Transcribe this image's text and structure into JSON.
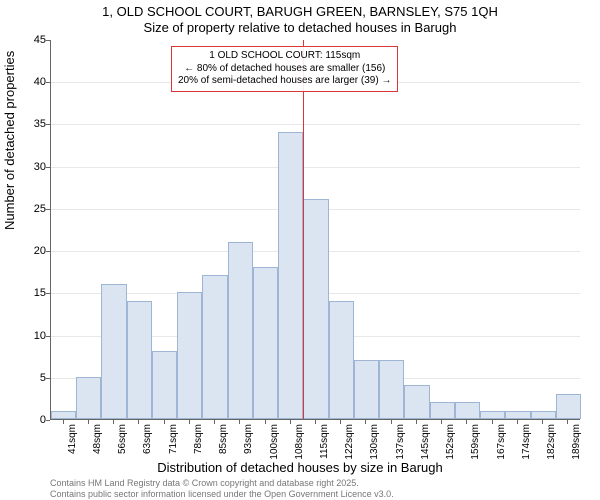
{
  "chart": {
    "type": "histogram",
    "title_line1": "1, OLD SCHOOL COURT, BARUGH GREEN, BARNSLEY, S75 1QH",
    "title_line2": "Size of property relative to detached houses in Barugh",
    "ylabel": "Number of detached properties",
    "xlabel": "Distribution of detached houses by size in Barugh",
    "ylim": [
      0,
      45
    ],
    "ytick_step": 5,
    "title_fontsize": 13,
    "label_fontsize": 13,
    "tick_fontsize": 11,
    "background_color": "#ffffff",
    "grid_color": "#e8e8e8",
    "bar_fill": "#dbe5f1",
    "bar_border": "#9fb5d4",
    "ref_line_color": "#d93636",
    "ref_line_x": "115sqm",
    "x_categories": [
      "41sqm",
      "48sqm",
      "56sqm",
      "63sqm",
      "71sqm",
      "78sqm",
      "85sqm",
      "93sqm",
      "100sqm",
      "108sqm",
      "115sqm",
      "122sqm",
      "130sqm",
      "137sqm",
      "145sqm",
      "152sqm",
      "159sqm",
      "167sqm",
      "174sqm",
      "182sqm",
      "189sqm"
    ],
    "values": [
      1,
      5,
      16,
      14,
      8,
      15,
      17,
      21,
      18,
      34,
      26,
      14,
      7,
      7,
      4,
      2,
      2,
      1,
      1,
      1,
      3
    ],
    "bar_width_ratio": 1.0,
    "annotation": {
      "line1": "1 OLD SCHOOL COURT: 115sqm",
      "line2": "← 80% of detached houses are smaller (156)",
      "line3": "20% of semi-detached houses are larger (39) →",
      "border_color": "#d93636",
      "fontsize": 10
    }
  },
  "footer": {
    "line1": "Contains HM Land Registry data © Crown copyright and database right 2025.",
    "line2": "Contains public sector information licensed under the Open Government Licence v3.0.",
    "color": "#777777",
    "fontsize": 9
  }
}
